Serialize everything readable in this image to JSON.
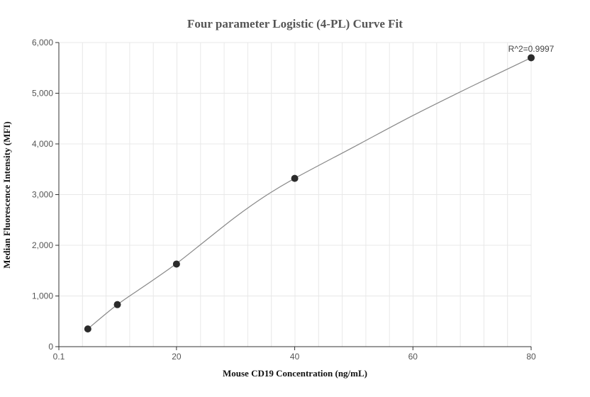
{
  "chart_data": {
    "type": "scatter",
    "title": "Four parameter Logistic (4-PL) Curve Fit",
    "xlabel": "Mouse CD19 Concentration (ng/mL)",
    "ylabel": "Median Fluorescence Intensity (MFI)",
    "xlim": [
      0.1,
      80
    ],
    "ylim": [
      0,
      6000
    ],
    "x_ticks": [
      "0.1",
      "20",
      "40",
      "60",
      "80"
    ],
    "y_ticks": [
      "0",
      "1,000",
      "2,000",
      "3,000",
      "4,000",
      "5,000",
      "6,000"
    ],
    "points": [
      {
        "x": 5,
        "y": 350
      },
      {
        "x": 10,
        "y": 830
      },
      {
        "x": 20,
        "y": 1630
      },
      {
        "x": 40,
        "y": 3320
      },
      {
        "x": 80,
        "y": 5700
      }
    ],
    "fit_curve": {
      "x": [
        5,
        10,
        15,
        20,
        25,
        30,
        35,
        40,
        50,
        60,
        70,
        80
      ],
      "y": [
        350,
        830,
        1230,
        1640,
        2100,
        2560,
        2970,
        3320,
        3940,
        4560,
        5140,
        5700
      ]
    },
    "annotation": "R^2=0.9997",
    "grid": true,
    "colors": {
      "point": "#2b2b2b",
      "curve": "#888888",
      "grid": "#e8e8e8",
      "axis": "#333333"
    }
  }
}
